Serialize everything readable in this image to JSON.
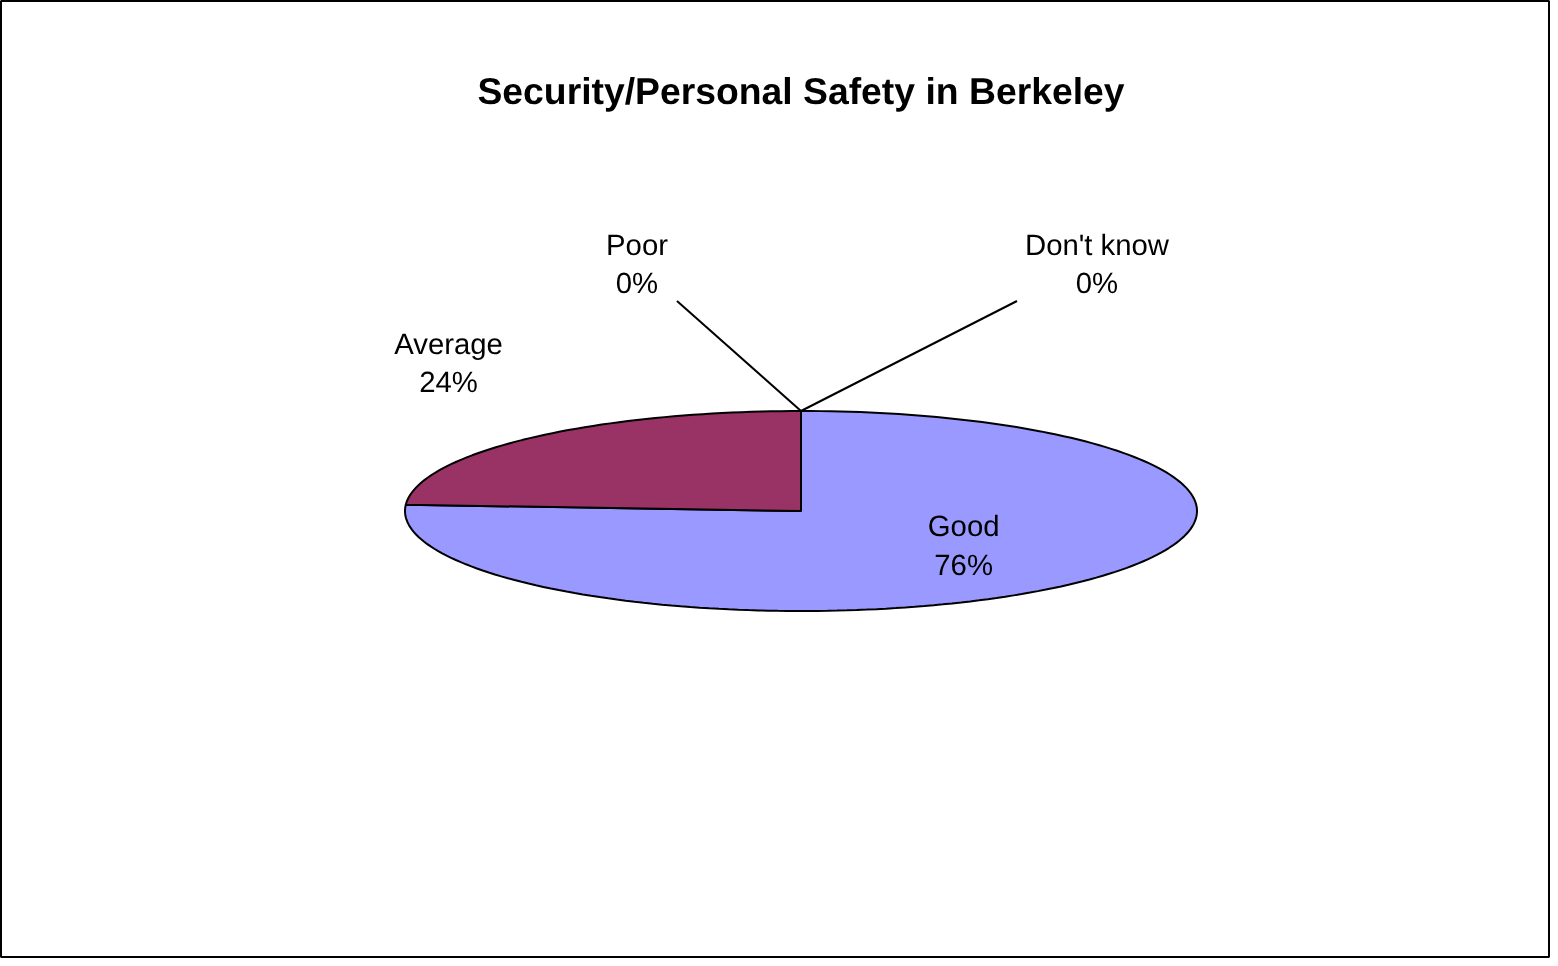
{
  "chart_data": {
    "type": "pie",
    "title": "Security/Personal Safety in Berkeley",
    "categories": [
      "Good",
      "Average",
      "Poor",
      "Don't know"
    ],
    "values": [
      76,
      24,
      0,
      0
    ],
    "colors": [
      "#9999ff",
      "#993366",
      "#ffffcc",
      "#ccffff"
    ],
    "value_labels": [
      "76%",
      "24%",
      "0%",
      "0%"
    ]
  }
}
